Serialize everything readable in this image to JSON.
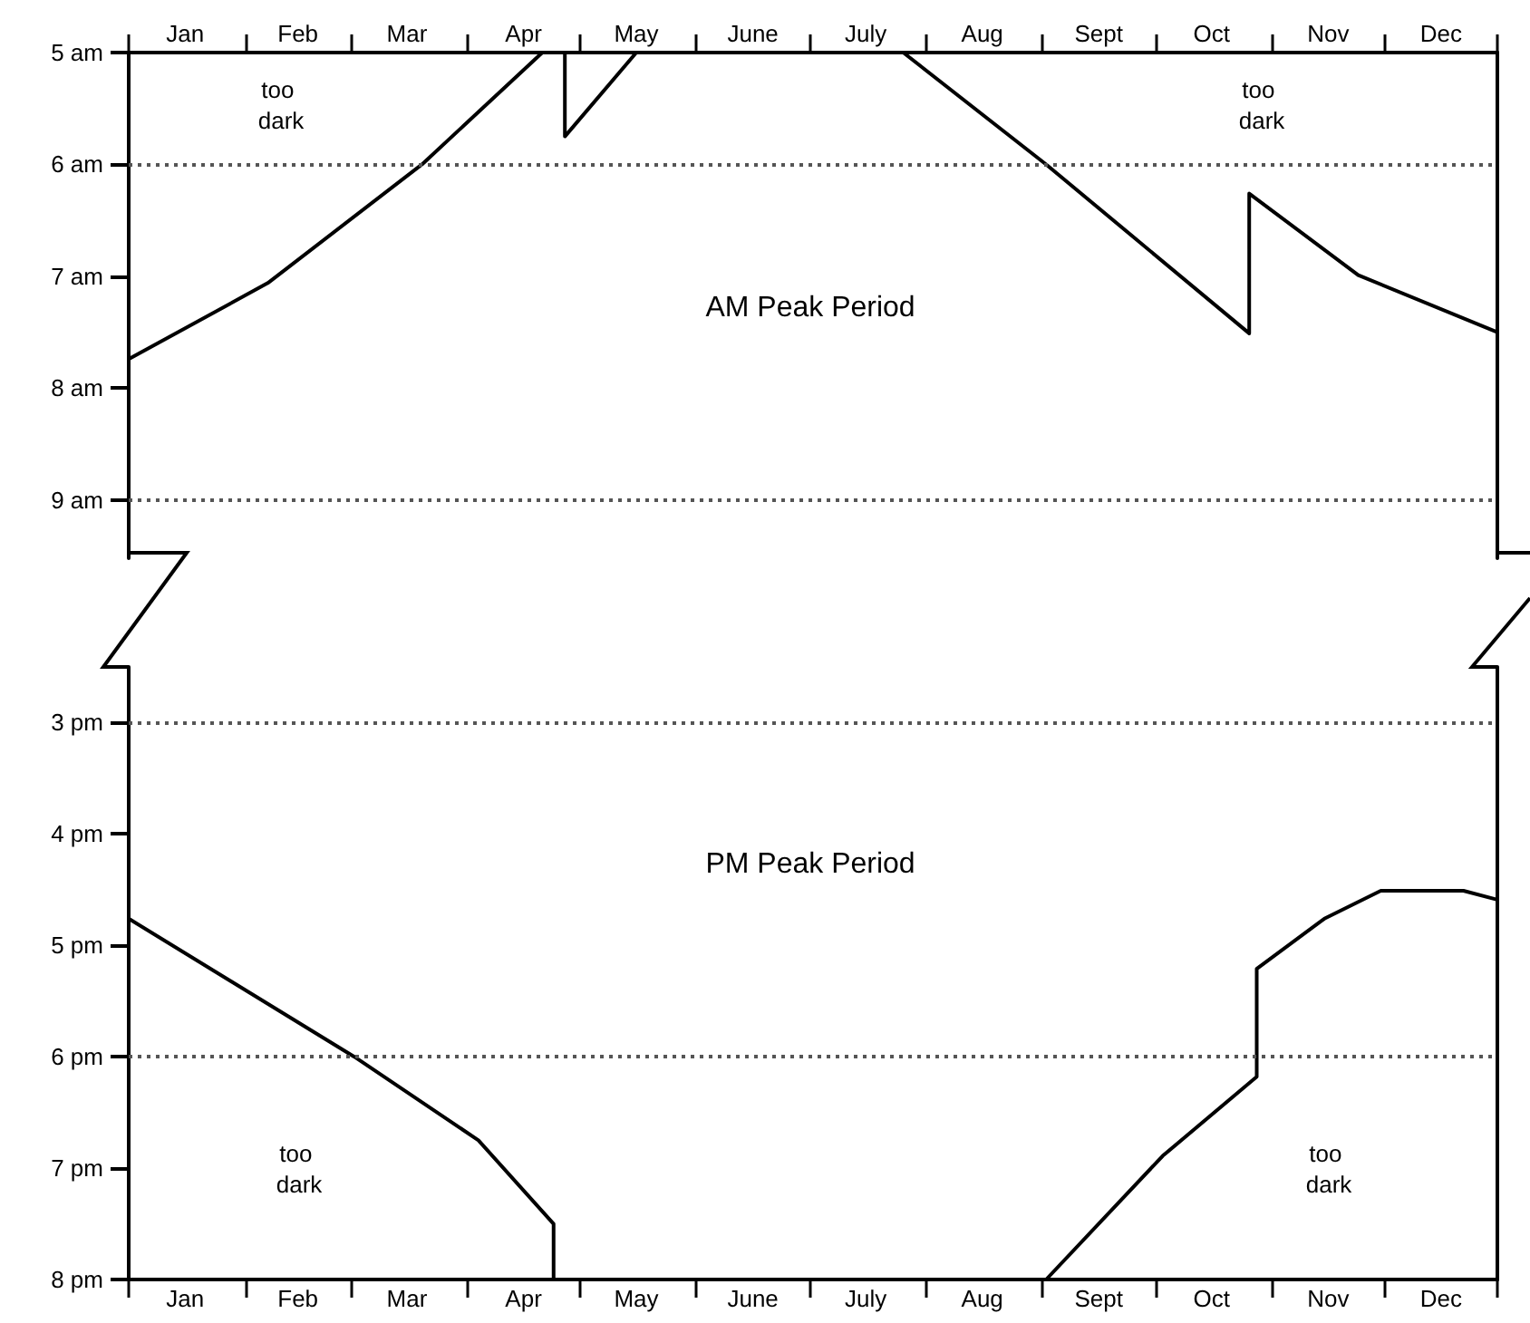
{
  "chart_data": [
    {
      "type": "line",
      "xlim": [
        "--01-01",
        "--12-31"
      ],
      "xticks": [
        {
          "value": "--01-01",
          "label": null
        },
        {
          "value": "--01-16",
          "label": "Jan"
        },
        {
          "value": "--02-01",
          "label": null
        },
        {
          "value": "--02-15",
          "label": "Feb"
        },
        {
          "value": "--03-01",
          "label": null
        },
        {
          "value": "--03-16",
          "label": "Mar"
        },
        {
          "value": "--04-01",
          "label": null
        },
        {
          "value": "--04-16",
          "label": "Apr"
        },
        {
          "value": "--05-01",
          "label": null
        },
        {
          "value": "--05-16",
          "label": "May"
        },
        {
          "value": "--06-01",
          "label": null
        },
        {
          "value": "--06-16",
          "label": "June"
        },
        {
          "value": "--07-01",
          "label": null
        },
        {
          "value": "--07-16",
          "label": "July"
        },
        {
          "value": "--08-01",
          "label": null
        },
        {
          "value": "--08-16",
          "label": "Aug"
        },
        {
          "value": "--09-01",
          "label": null
        },
        {
          "value": "--09-16",
          "label": "Sept"
        },
        {
          "value": "--10-01",
          "label": null
        },
        {
          "value": "--10-16",
          "label": "Oct"
        },
        {
          "value": "--11-01",
          "label": null
        },
        {
          "value": "--11-16",
          "label": "Nov"
        },
        {
          "value": "--12-01",
          "label": null
        },
        {
          "value": "--12-16",
          "label": "Dec"
        },
        {
          "value": "--12-31",
          "label": null
        }
      ],
      "ylim": [
        9.52,
        5
      ],
      "yticks": [
        {
          "value": 5,
          "label": "5 am"
        },
        {
          "value": 6,
          "label": "6 am"
        },
        {
          "value": 7,
          "label": "7 am"
        },
        {
          "value": 8,
          "label": "8 am"
        },
        {
          "value": 9,
          "label": "9 am"
        }
      ],
      "series": [
        {
          "color": "#000000",
          "x": [
            "--01-01",
            "--02-07",
            "--03-20",
            "--04-21",
            "--04-24",
            "--04-27",
            "--04-27",
            "--05-16",
            "--05-17",
            "--07-26",
            "--09-02",
            "--10-26",
            "--10-26",
            "--11-24",
            "--12-31"
          ],
          "values": [
            7.74,
            7.06,
            6.0,
            5.0,
            null,
            5.0,
            5.75,
            5.0,
            null,
            5.0,
            6.0,
            7.51,
            6.26,
            6.99,
            7.5
          ]
        }
      ],
      "ref_lines": [
        {
          "axis": "y",
          "value": 6,
          "line_style": "dotted",
          "color": "#555555"
        },
        {
          "axis": "y",
          "value": 9,
          "line_style": "dotted",
          "color": "#555555"
        }
      ],
      "annotations": [
        "too dark",
        "too dark",
        "AM Peak Period"
      ]
    },
    {
      "type": "line",
      "xlim": [
        "--01-01",
        "--12-31"
      ],
      "xticks": [
        {
          "value": "--01-01",
          "label": null
        },
        {
          "value": "--01-16",
          "label": "Jan"
        },
        {
          "value": "--02-01",
          "label": null
        },
        {
          "value": "--02-15",
          "label": "Feb"
        },
        {
          "value": "--03-01",
          "label": null
        },
        {
          "value": "--03-16",
          "label": "Mar"
        },
        {
          "value": "--04-01",
          "label": null
        },
        {
          "value": "--04-16",
          "label": "Apr"
        },
        {
          "value": "--05-01",
          "label": null
        },
        {
          "value": "--05-16",
          "label": "May"
        },
        {
          "value": "--06-01",
          "label": null
        },
        {
          "value": "--06-16",
          "label": "June"
        },
        {
          "value": "--07-01",
          "label": null
        },
        {
          "value": "--07-16",
          "label": "July"
        },
        {
          "value": "--08-01",
          "label": null
        },
        {
          "value": "--08-16",
          "label": "Aug"
        },
        {
          "value": "--09-01",
          "label": null
        },
        {
          "value": "--09-16",
          "label": "Sept"
        },
        {
          "value": "--10-01",
          "label": null
        },
        {
          "value": "--10-16",
          "label": "Oct"
        },
        {
          "value": "--11-01",
          "label": null
        },
        {
          "value": "--11-16",
          "label": "Nov"
        },
        {
          "value": "--12-01",
          "label": null
        },
        {
          "value": "--12-16",
          "label": "Dec"
        },
        {
          "value": "--12-31",
          "label": null
        }
      ],
      "ylim": [
        8,
        2.5
      ],
      "yticks": [
        {
          "value": 3,
          "label": "3 pm"
        },
        {
          "value": 4,
          "label": "4 pm"
        },
        {
          "value": 5,
          "label": "5 pm"
        },
        {
          "value": 6,
          "label": "6 pm"
        },
        {
          "value": 7,
          "label": "7 pm"
        },
        {
          "value": 8,
          "label": "8 pm"
        }
      ],
      "series": [
        {
          "color": "#000000",
          "x": [
            "--01-01",
            "--03-02",
            "--04-04",
            "--04-24",
            "--04-24",
            "--06-01",
            "--09-02",
            "--10-03",
            "--10-28",
            "--10-28",
            "--11-15",
            "--11-30",
            "--12-22",
            "--12-31"
          ],
          "values": [
            4.76,
            6.0,
            6.75,
            7.5,
            8,
            null,
            8,
            6.89,
            6.18,
            5.21,
            4.76,
            4.51,
            4.51,
            4.59
          ]
        }
      ],
      "ref_lines": [
        {
          "axis": "y",
          "value": 3,
          "line_style": "dotted",
          "color": "#555555"
        },
        {
          "axis": "y",
          "value": 6,
          "line_style": "dotted",
          "color": "#555555"
        }
      ],
      "annotations": [
        "PM Peak Period",
        "too dark",
        "too dark"
      ]
    }
  ]
}
